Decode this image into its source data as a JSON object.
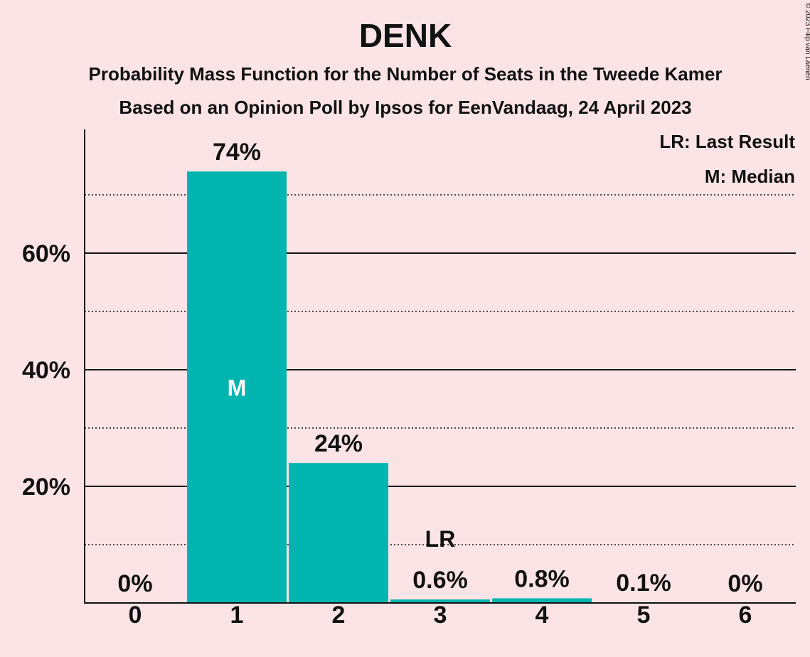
{
  "chart_data": {
    "type": "bar",
    "title": "DENK",
    "subtitle": "Probability Mass Function for the Number of Seats in the Tweede Kamer",
    "subtitle2": "Based on an Opinion Poll by Ipsos for EenVandaag, 24 April 2023",
    "copyright": "© 2023 Filip van Laenen",
    "categories": [
      "0",
      "1",
      "2",
      "3",
      "4",
      "5",
      "6"
    ],
    "values": [
      0,
      74,
      24,
      0.6,
      0.8,
      0.1,
      0
    ],
    "value_labels": [
      "0%",
      "74%",
      "24%",
      "0.6%",
      "0.8%",
      "0.1%",
      "0%"
    ],
    "ylim": [
      0,
      80
    ],
    "yticks_major": [
      20,
      40,
      60
    ],
    "ytick_labels": [
      "20%",
      "40%",
      "60%"
    ],
    "yticks_minor": [
      10,
      30,
      50,
      70
    ],
    "median_index": 1,
    "median_marker": "M",
    "last_result_index": 3,
    "last_result_marker": "LR",
    "legend": [
      "LR: Last Result",
      "M: Median"
    ],
    "legend_position": "top-right",
    "bar_color": "#00b5b0",
    "background_color": "#fce4e6"
  }
}
